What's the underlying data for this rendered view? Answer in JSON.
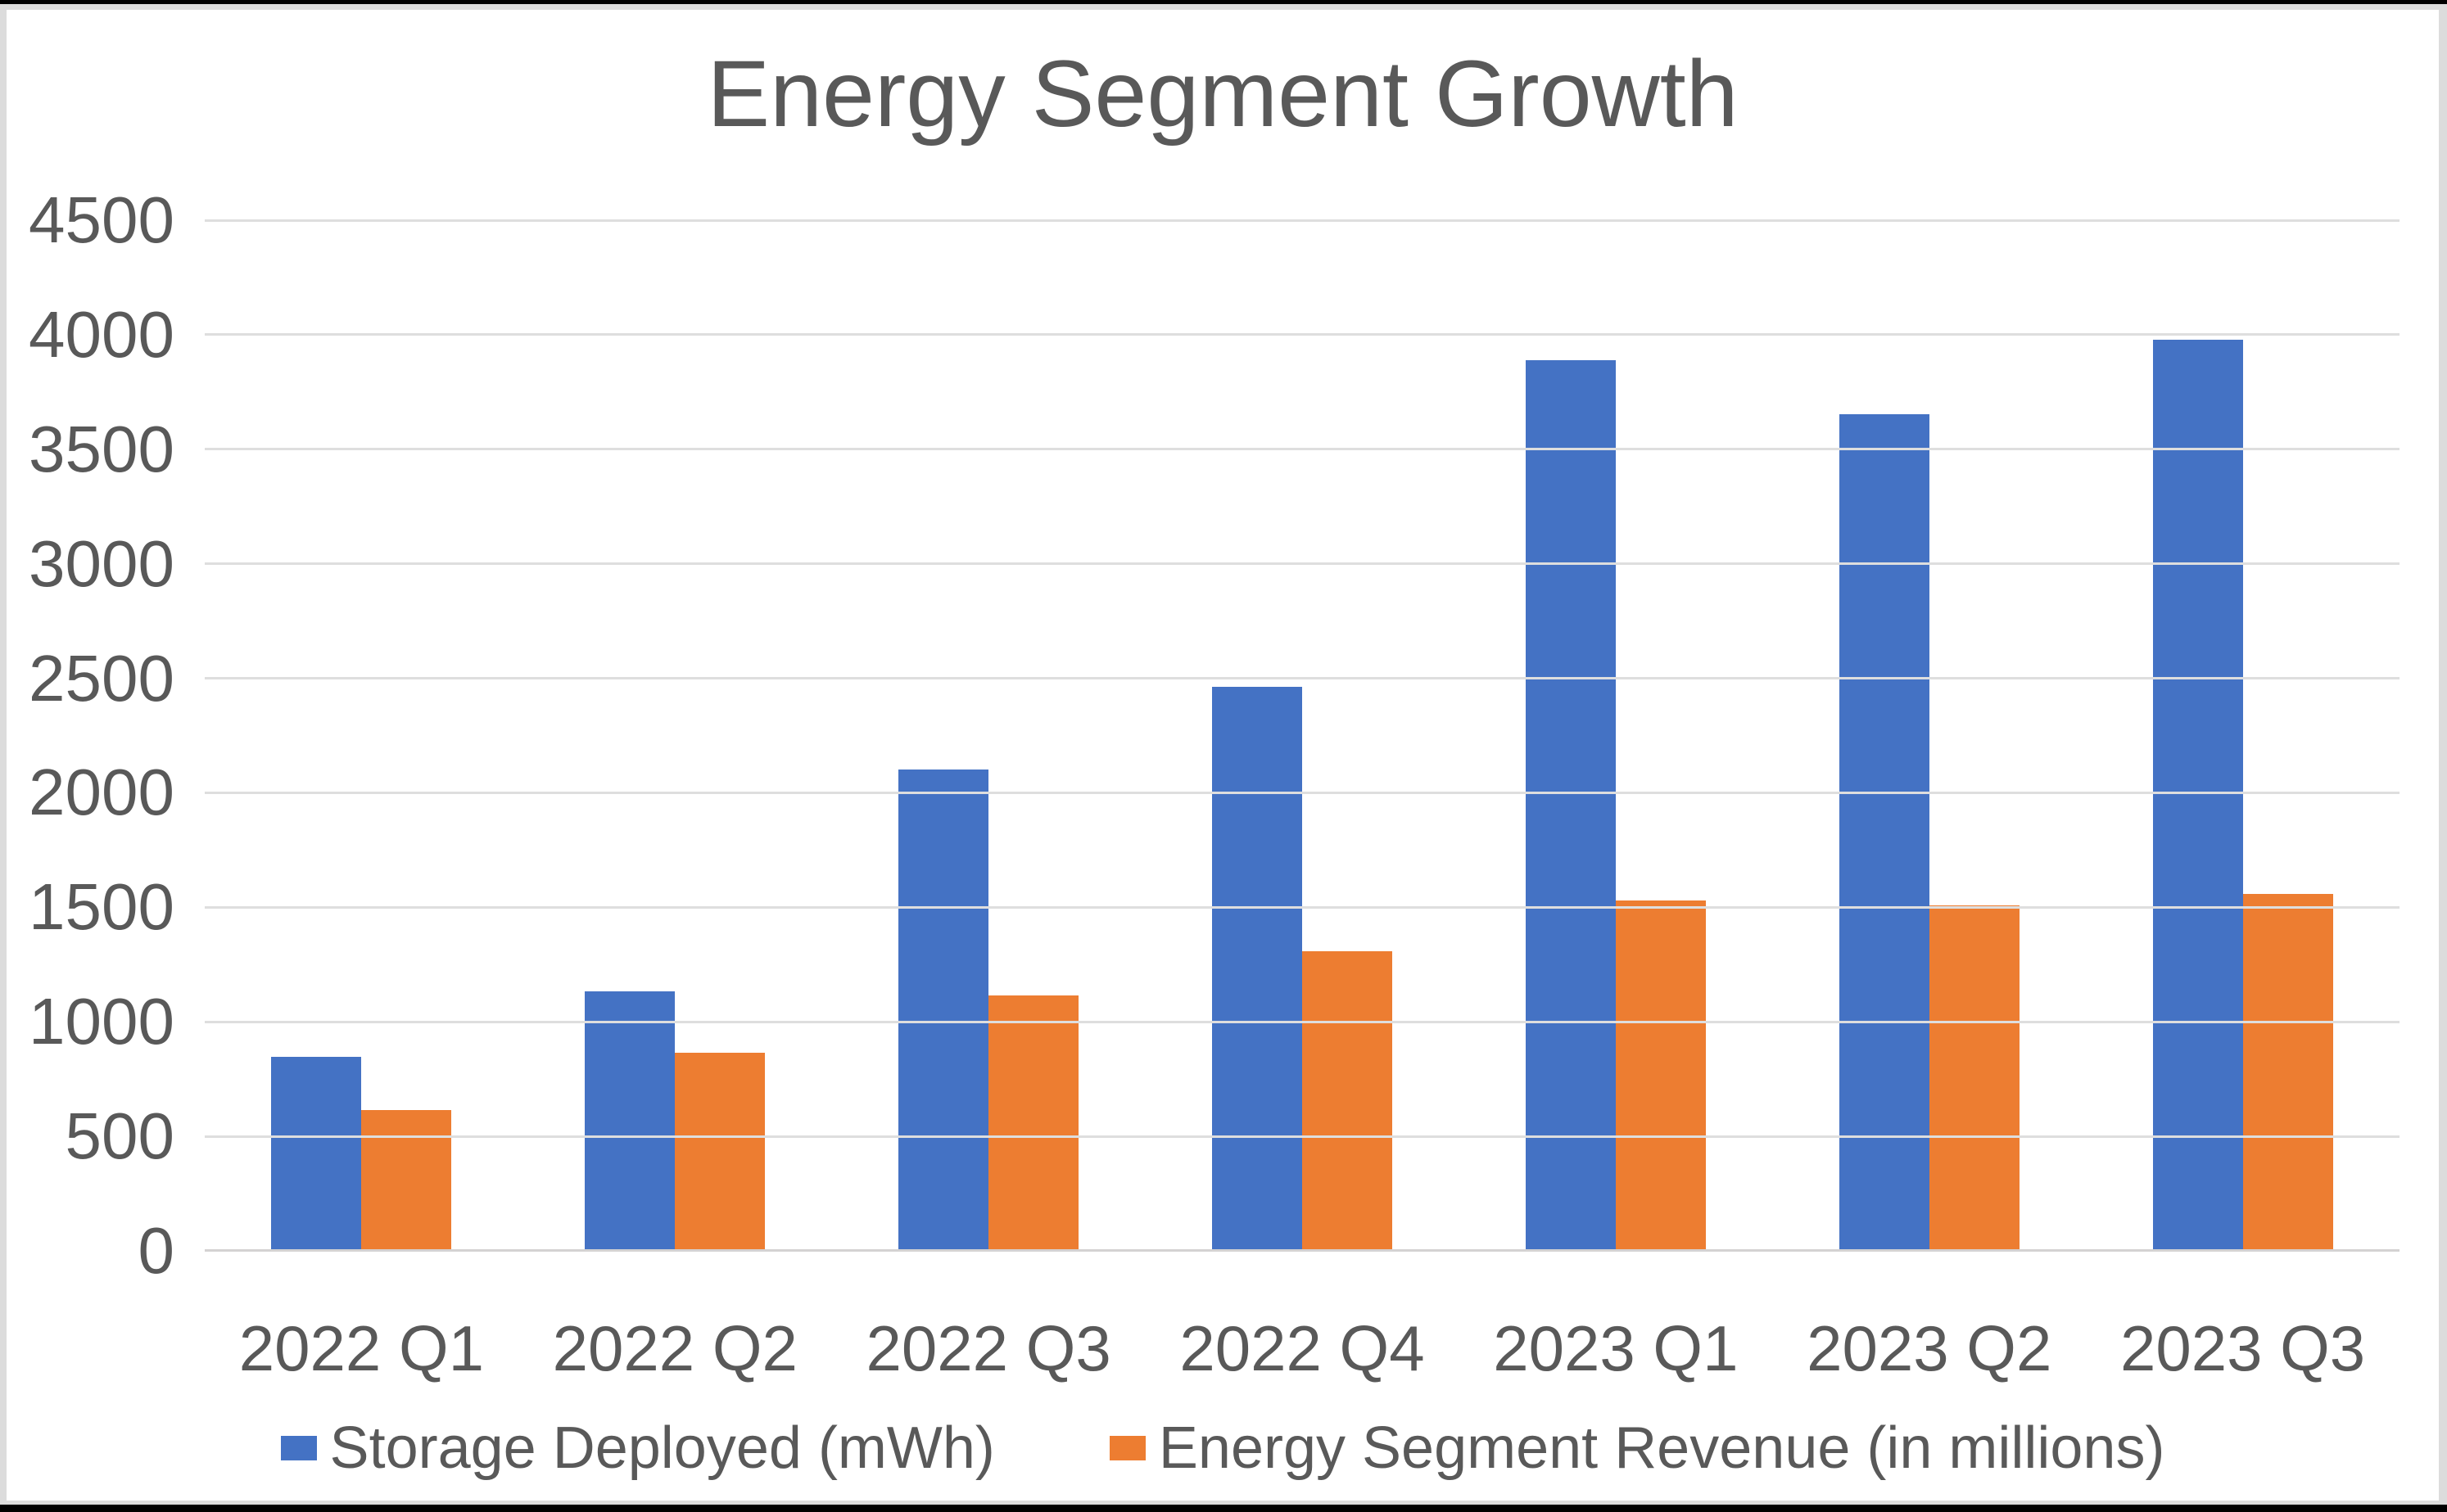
{
  "chart_data": {
    "type": "bar",
    "title": "Energy Segment Growth",
    "categories": [
      "2022 Q1",
      "2022 Q2",
      "2022 Q3",
      "2022 Q4",
      "2023 Q1",
      "2023 Q2",
      "2023 Q3"
    ],
    "series": [
      {
        "name": "Storage Deployed (mWh)",
        "color": "#4472C4",
        "values": [
          846,
          1133,
          2100,
          2462,
          3889,
          3653,
          3980
        ]
      },
      {
        "name": "Energy Segment Revenue (in millions)",
        "color": "#ED7D31",
        "values": [
          616,
          866,
          1117,
          1310,
          1529,
          1509,
          1559
        ]
      }
    ],
    "ylim": [
      0,
      4500
    ],
    "ytick_interval": 500,
    "yticks": [
      "0",
      "500",
      "1000",
      "1500",
      "2000",
      "2500",
      "3000",
      "3500",
      "4000",
      "4500"
    ],
    "grid": true,
    "legend_position": "bottom"
  },
  "colors": {
    "series_blue": "#4472C4",
    "series_orange": "#ED7D31",
    "text": "#595959",
    "gridline": "#DEDEDE",
    "axis_line": "#D4D2D2",
    "chart_background": "#FFFFFF",
    "frame": "#DCDCDC",
    "screen_border": "#000000"
  }
}
